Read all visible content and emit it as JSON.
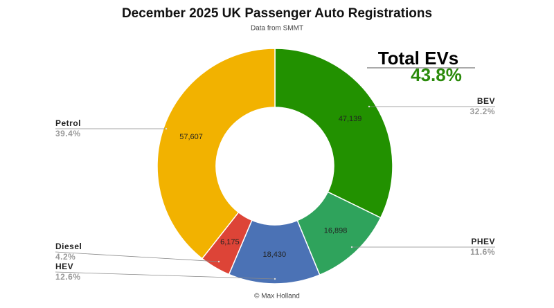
{
  "chart_data": {
    "type": "donut",
    "title": "December 2025 UK Passenger Auto Registrations",
    "subtitle": "Data from SMMT",
    "source": "© Max Holland",
    "categories": [
      "BEV",
      "PHEV",
      "HEV",
      "Diesel",
      "Petrol"
    ],
    "values": [
      47139,
      16898,
      18430,
      6175,
      57607
    ],
    "value_labels": [
      "47,139",
      "16,898",
      "18,430",
      "6,175",
      "57,607"
    ],
    "percentages": [
      32.2,
      11.6,
      12.6,
      4.2,
      39.4
    ],
    "percentage_labels": [
      "32.2%",
      "11.6%",
      "12.6%",
      "4.2%",
      "39.4%"
    ],
    "colors": [
      "#229100",
      "#2fa35c",
      "#4b72b5",
      "#dd4437",
      "#f2b200"
    ],
    "annotation": {
      "title": "Total EVs",
      "value": 43.8,
      "label": "43.8%",
      "color": "#2a8a0a"
    }
  }
}
